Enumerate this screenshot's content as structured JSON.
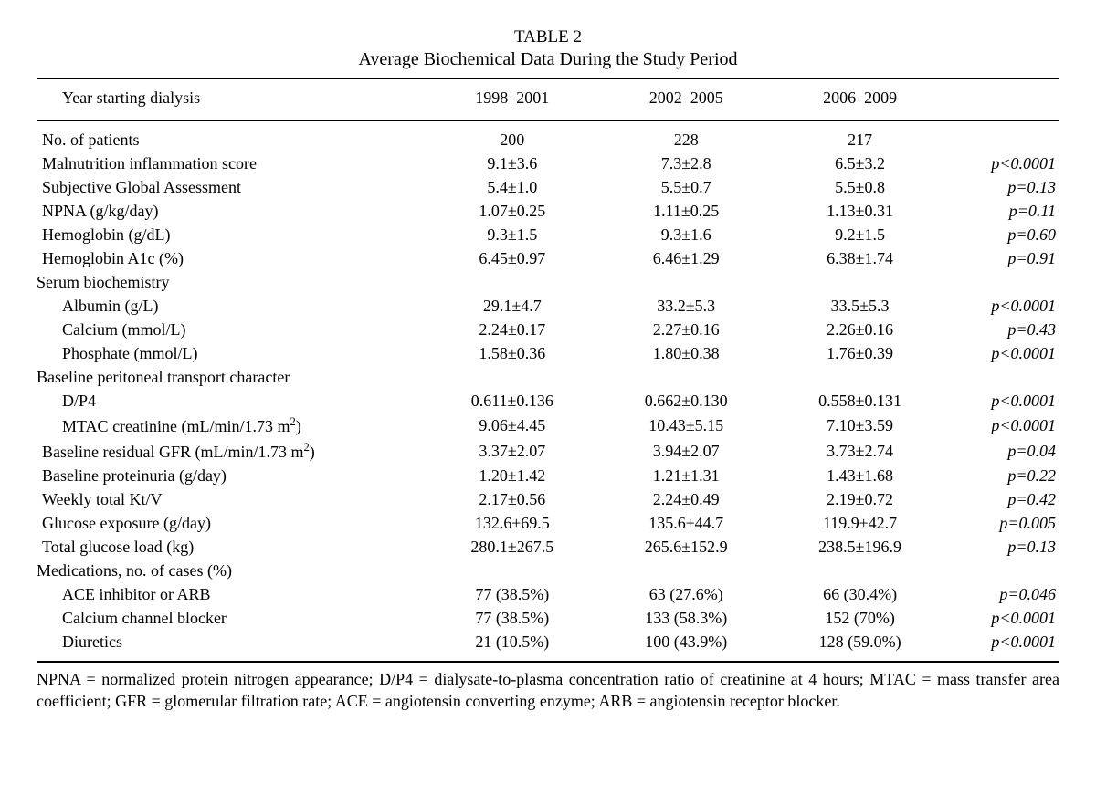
{
  "table_label": "TABLE 2",
  "table_title": "Average Biochemical Data During the Study Period",
  "columns": {
    "year_label": "Year starting dialysis",
    "c1": "1998–2001",
    "c2": "2002–2005",
    "c3": "2006–2009",
    "pcol": ""
  },
  "rows": [
    {
      "type": "data",
      "label": "No. of patients",
      "c1": "200",
      "c2": "228",
      "c3": "217",
      "p": ""
    },
    {
      "type": "data",
      "label": "Malnutrition inflammation score",
      "c1": "9.1±3.6",
      "c2": "7.3±2.8",
      "c3": "6.5±3.2",
      "p": "p<0.0001"
    },
    {
      "type": "data",
      "label": "Subjective Global Assessment",
      "c1": "5.4±1.0",
      "c2": "5.5±0.7",
      "c3": "5.5±0.8",
      "p": "p=0.13"
    },
    {
      "type": "data",
      "label": "NPNA (g/kg/day)",
      "c1": "1.07±0.25",
      "c2": "1.11±0.25",
      "c3": "1.13±0.31",
      "p": "p=0.11"
    },
    {
      "type": "data",
      "label": "Hemoglobin (g/dL)",
      "c1": "9.3±1.5",
      "c2": "9.3±1.6",
      "c3": "9.2±1.5",
      "p": "p=0.60"
    },
    {
      "type": "data",
      "label": "Hemoglobin A1c (%)",
      "c1": "6.45±0.97",
      "c2": "6.46±1.29",
      "c3": "6.38±1.74",
      "p": "p=0.91"
    },
    {
      "type": "section",
      "label": "Serum biochemistry"
    },
    {
      "type": "sub",
      "label": "Albumin (g/L)",
      "c1": "29.1±4.7",
      "c2": "33.2±5.3",
      "c3": "33.5±5.3",
      "p": "p<0.0001"
    },
    {
      "type": "sub",
      "label": "Calcium (mmol/L)",
      "c1": "2.24±0.17",
      "c2": "2.27±0.16",
      "c3": "2.26±0.16",
      "p": "p=0.43"
    },
    {
      "type": "sub",
      "label": "Phosphate (mmol/L)",
      "c1": "1.58±0.36",
      "c2": "1.80±0.38",
      "c3": "1.76±0.39",
      "p": "p<0.0001"
    },
    {
      "type": "section",
      "label": "Baseline peritoneal transport character"
    },
    {
      "type": "sub",
      "label": "D/P4",
      "c1": "0.611±0.136",
      "c2": "0.662±0.130",
      "c3": "0.558±0.131",
      "p": "p<0.0001"
    },
    {
      "type": "sub",
      "label_html": "MTAC creatinine (mL/min/1.73 m<sup>2</sup>)",
      "c1": "9.06±4.45",
      "c2": "10.43±5.15",
      "c3": "7.10±3.59",
      "p": "p<0.0001"
    },
    {
      "type": "data",
      "label_html": "Baseline residual GFR (mL/min/1.73 m<sup>2</sup>)",
      "c1": "3.37±2.07",
      "c2": "3.94±2.07",
      "c3": "3.73±2.74",
      "p": "p=0.04"
    },
    {
      "type": "data",
      "label": "Baseline proteinuria (g/day)",
      "c1": "1.20±1.42",
      "c2": "1.21±1.31",
      "c3": "1.43±1.68",
      "p": "p=0.22"
    },
    {
      "type": "data",
      "label": "Weekly total Kt/V",
      "c1": "2.17±0.56",
      "c2": "2.24±0.49",
      "c3": "2.19±0.72",
      "p": "p=0.42"
    },
    {
      "type": "data",
      "label": "Glucose exposure (g/day)",
      "c1": "132.6±69.5",
      "c2": "135.6±44.7",
      "c3": "119.9±42.7",
      "p": "p=0.005"
    },
    {
      "type": "data",
      "label": "Total glucose load (kg)",
      "c1": "280.1±267.5",
      "c2": "265.6±152.9",
      "c3": "238.5±196.9",
      "p": "p=0.13"
    },
    {
      "type": "section",
      "label": "Medications, no. of cases (%)"
    },
    {
      "type": "sub",
      "label": "ACE inhibitor or ARB",
      "c1": "77 (38.5%)",
      "c2": "63 (27.6%)",
      "c3": "66 (30.4%)",
      "p": "p=0.046"
    },
    {
      "type": "sub",
      "label": "Calcium channel blocker",
      "c1": "77 (38.5%)",
      "c2": "133 (58.3%)",
      "c3": "152 (70%)",
      "p": "p<0.0001"
    },
    {
      "type": "sub",
      "label": "Diuretics",
      "c1": "21 (10.5%)",
      "c2": "100 (43.9%)",
      "c3": "128 (59.0%)",
      "p": "p<0.0001"
    }
  ],
  "footnote": "NPNA = normalized protein nitrogen appearance; D/P4 = dialysate-to-plasma concentration ratio of creatinine at 4 hours; MTAC = mass transfer area coefficient; GFR = glomerular filtration rate; ACE = angiotensin converting enzyme; ARB = angiotensin receptor blocker.",
  "col_widths": [
    "38%",
    "17%",
    "17%",
    "17%",
    "11%"
  ]
}
